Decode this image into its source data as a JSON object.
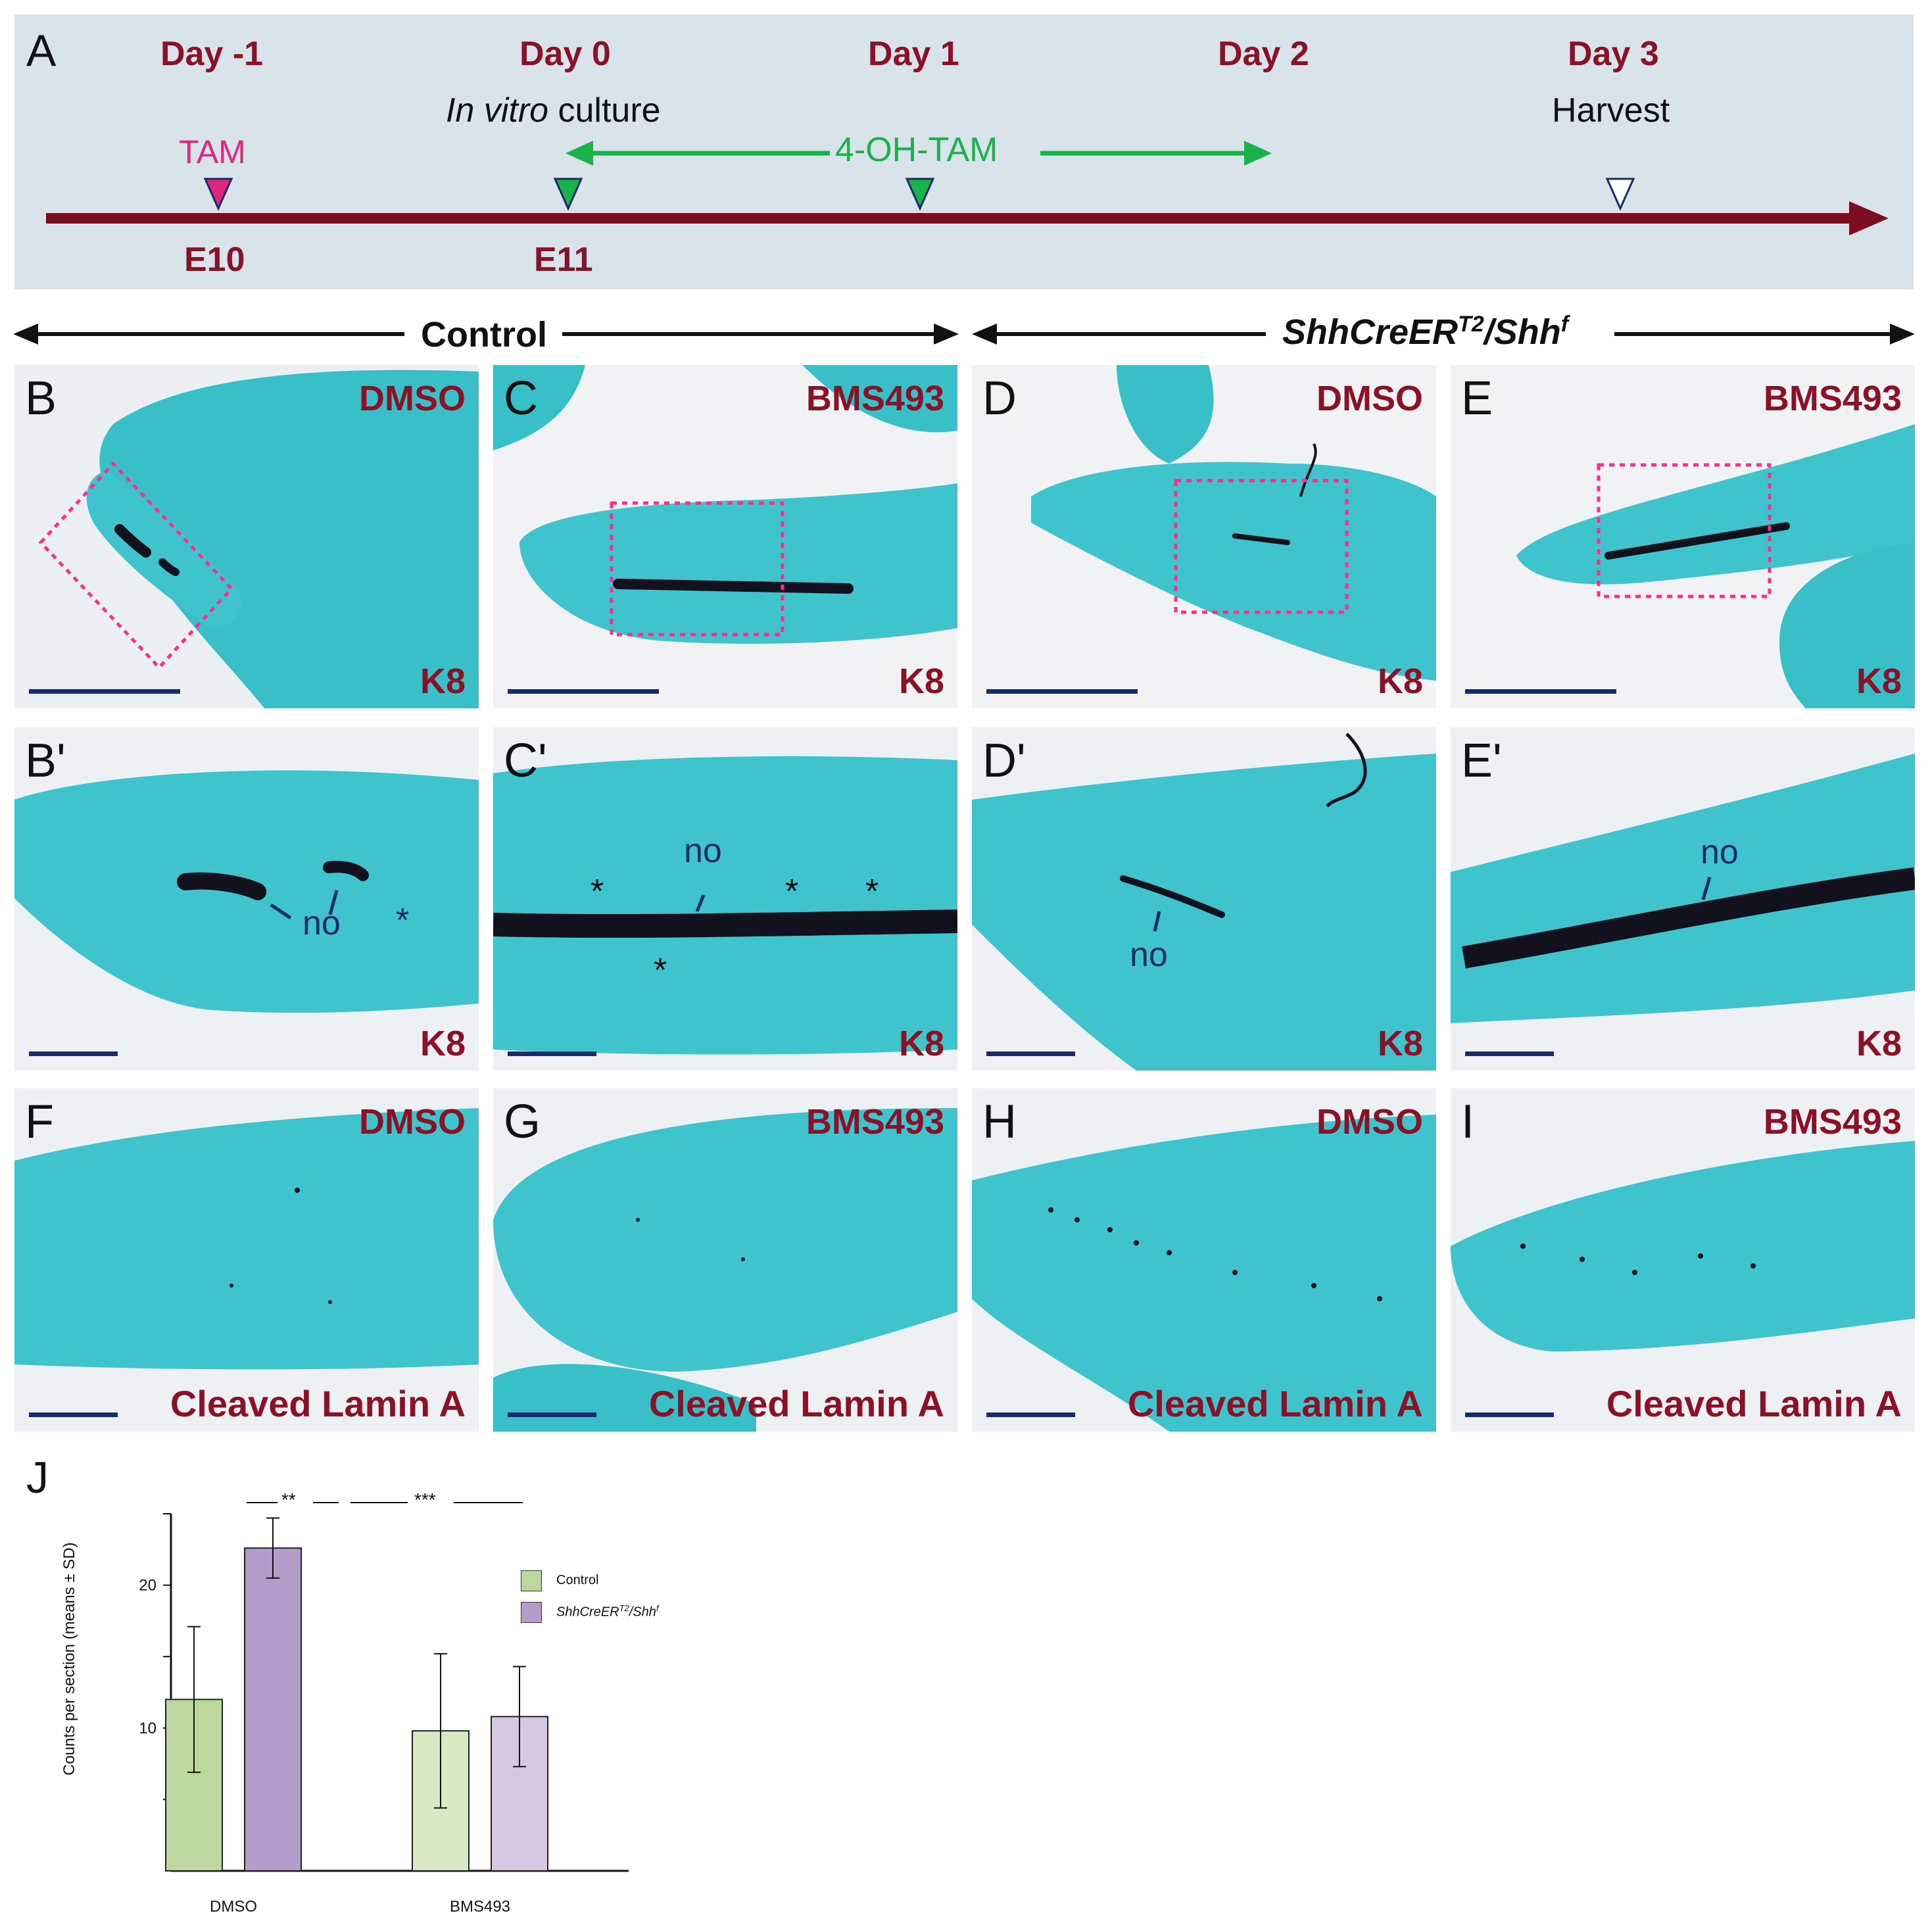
{
  "panel_a": {
    "letter": "A",
    "days": [
      "Day -1",
      "Day 0",
      "Day 1",
      "Day 2",
      "Day 3"
    ],
    "in_vitro": "In vitro",
    "culture": "culture",
    "harvest": "Harvest",
    "tam": "TAM",
    "ohtam": "4-OH-TAM",
    "embryo_days": [
      "E10",
      "E11"
    ],
    "colors": {
      "timeline": "#7c0d20",
      "tam": "#e0267f",
      "ohtam": "#19b34a",
      "box": "#d8e3ea"
    }
  },
  "groups": {
    "control": "Control",
    "mutant_main": "ShhCreER",
    "mutant_sup": "T2",
    "mutant_mid": "/Shh",
    "mutant_sup2": "f"
  },
  "panels": [
    {
      "letter": "B",
      "treatment": "DMSO",
      "stain": "K8"
    },
    {
      "letter": "C",
      "treatment": "BMS493",
      "stain": "K8"
    },
    {
      "letter": "D",
      "treatment": "DMSO",
      "stain": "K8"
    },
    {
      "letter": "E",
      "treatment": "BMS493",
      "stain": "K8"
    },
    {
      "letter": "B'",
      "stain": "K8",
      "labels": [
        "no"
      ]
    },
    {
      "letter": "C'",
      "stain": "K8",
      "labels": [
        "no"
      ]
    },
    {
      "letter": "D'",
      "stain": "K8",
      "labels": [
        "no"
      ]
    },
    {
      "letter": "E'",
      "stain": "K8",
      "labels": [
        "no"
      ]
    },
    {
      "letter": "F",
      "treatment": "DMSO",
      "stain": "Cleaved Lamin A"
    },
    {
      "letter": "G",
      "treatment": "BMS493",
      "stain": "Cleaved Lamin A"
    },
    {
      "letter": "H",
      "treatment": "DMSO",
      "stain": "Cleaved Lamin A"
    },
    {
      "letter": "I",
      "treatment": "BMS493",
      "stain": "Cleaved Lamin A"
    }
  ],
  "chart": {
    "letter": "J",
    "significance": [
      "**",
      "***"
    ],
    "legend_control": "Control",
    "legend_mut_main": "ShhCreER",
    "legend_mut_sup": "T2",
    "legend_mut_mid": "/Shh",
    "legend_mut_sup2": "f"
  },
  "chart_data": {
    "type": "bar",
    "categories": [
      "DMSO",
      "BMS493"
    ],
    "ylabel": "Counts per section (means ± SD)",
    "yticks": [
      10,
      20
    ],
    "ylim": [
      0,
      25
    ],
    "series": [
      {
        "name": "Control",
        "values": [
          12.0,
          9.8
        ],
        "sd": [
          5.1,
          5.4
        ],
        "colors": [
          "#bcd89f",
          "#d8e9c4"
        ]
      },
      {
        "name": "ShhCreERT2/Shhf",
        "values": [
          22.6,
          10.8
        ],
        "sd": [
          2.1,
          3.5
        ],
        "colors": [
          "#b49ccb",
          "#d7c8e2"
        ]
      }
    ]
  }
}
